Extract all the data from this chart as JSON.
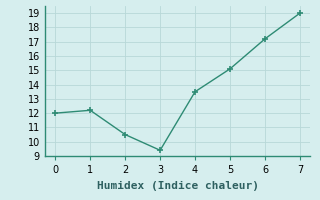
{
  "x": [
    0,
    1,
    2,
    3,
    4,
    5,
    6,
    7
  ],
  "y": [
    12.0,
    12.2,
    10.5,
    9.4,
    13.5,
    15.1,
    17.2,
    19.0
  ],
  "xlabel": "Humidex (Indice chaleur)",
  "xlim": [
    -0.3,
    7.3
  ],
  "ylim": [
    9,
    19.5
  ],
  "yticks": [
    9,
    10,
    11,
    12,
    13,
    14,
    15,
    16,
    17,
    18,
    19
  ],
  "xticks": [
    0,
    1,
    2,
    3,
    4,
    5,
    6,
    7
  ],
  "line_color": "#2e8b74",
  "marker": "+",
  "marker_size": 5,
  "background_color": "#d6eeee",
  "grid_color": "#b8d8d8",
  "tick_label_fontsize": 7,
  "xlabel_fontsize": 8,
  "linewidth": 1.0
}
